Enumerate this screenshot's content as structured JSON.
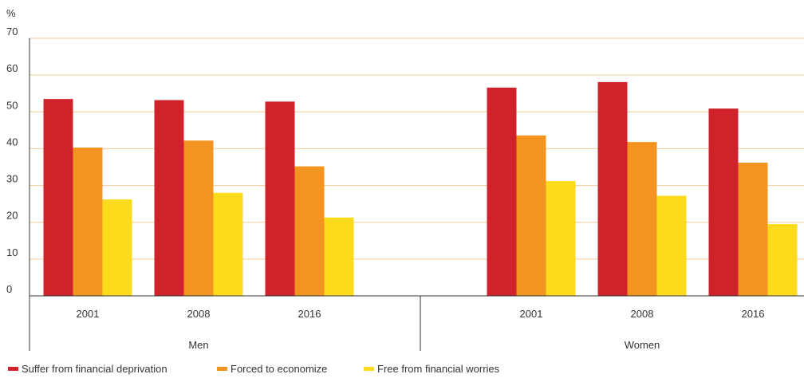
{
  "chart_data": {
    "type": "bar",
    "ylabel": "%",
    "ylim": [
      0,
      70
    ],
    "yticks": [
      0,
      10,
      20,
      30,
      40,
      50,
      60,
      70
    ],
    "groups": [
      {
        "name": "Men",
        "categories": [
          "2001",
          "2008",
          "2016"
        ]
      },
      {
        "name": "Women",
        "categories": [
          "2001",
          "2008",
          "2016"
        ]
      }
    ],
    "series": [
      {
        "name": "Suffer from financial deprivation",
        "color": "#d0222b",
        "values": [
          53.5,
          53.2,
          52.8,
          56.6,
          58.1,
          50.9
        ]
      },
      {
        "name": "Forced to economize",
        "color": "#f39420",
        "values": [
          40.3,
          42.2,
          35.2,
          43.6,
          41.8,
          36.2
        ]
      },
      {
        "name": "Free from financial worries",
        "color": "#fcdb1c",
        "values": [
          26.2,
          28.0,
          21.3,
          31.2,
          27.2,
          19.5
        ]
      }
    ],
    "grid": true,
    "gridline_color": "#f5c99a",
    "legend_position": "bottom-left"
  }
}
